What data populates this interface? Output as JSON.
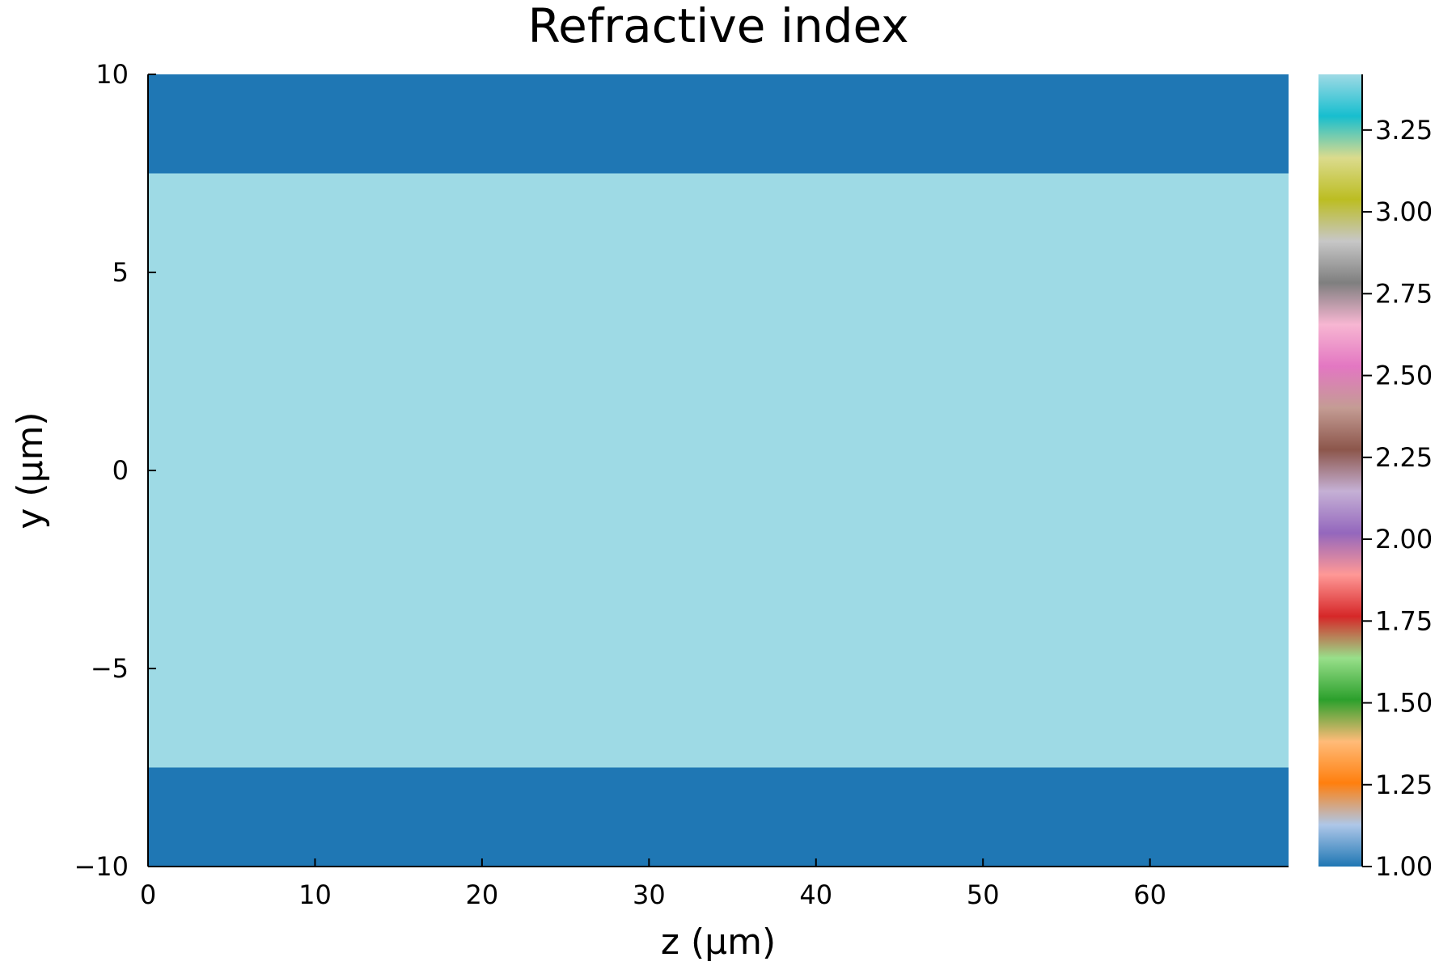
{
  "chart_data": {
    "type": "heatmap",
    "title": "Refractive index",
    "xlabel": "z (μm)",
    "ylabel": "y (μm)",
    "xlim": [
      0,
      68.3
    ],
    "ylim": [
      -10,
      10
    ],
    "xticks": [
      0,
      10,
      20,
      30,
      40,
      50,
      60
    ],
    "xtick_labels": [
      "0",
      "10",
      "20",
      "30",
      "40",
      "50",
      "60"
    ],
    "yticks": [
      -10,
      -5,
      0,
      5,
      10
    ],
    "ytick_labels": [
      "−10",
      "−5",
      "0",
      "5",
      "10"
    ],
    "grid": false,
    "regions": [
      {
        "y_from": -10,
        "y_to": -7.5,
        "value": 1.0
      },
      {
        "y_from": -7.5,
        "y_to": 7.5,
        "value": 3.42
      },
      {
        "y_from": 7.5,
        "y_to": 10,
        "value": 1.0
      }
    ],
    "colorbar": {
      "range": [
        1.0,
        3.42
      ],
      "ticks": [
        1.0,
        1.25,
        1.5,
        1.75,
        2.0,
        2.25,
        2.5,
        2.75,
        3.0,
        3.25
      ],
      "tick_labels": [
        "1.00",
        "1.25",
        "1.50",
        "1.75",
        "2.00",
        "2.25",
        "2.50",
        "2.75",
        "3.00",
        "3.25"
      ],
      "colormap": [
        "#1f77b4",
        "#aec7e8",
        "#ff7f0e",
        "#ffbb78",
        "#2ca02c",
        "#98df8a",
        "#d62728",
        "#ff9896",
        "#9467bd",
        "#c5b0d5",
        "#8c564b",
        "#c49c94",
        "#e377c2",
        "#f7b6d2",
        "#7f7f7f",
        "#c7c7c7",
        "#bcbd22",
        "#dbdb8d",
        "#17becf",
        "#9edae5"
      ]
    }
  }
}
